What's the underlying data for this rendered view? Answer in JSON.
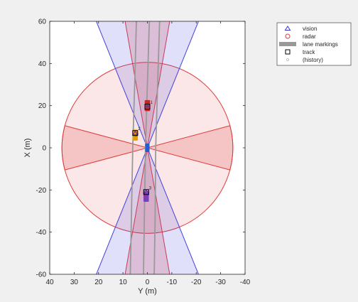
{
  "chart_data": {
    "type": "scatter",
    "title": "",
    "xlabel": "Y (m)",
    "ylabel": "X (m)",
    "xlim": [
      40,
      -40
    ],
    "ylim": [
      -60,
      60
    ],
    "x_ticks": [
      40,
      30,
      20,
      10,
      0,
      -10,
      -20,
      -30,
      -40
    ],
    "y_ticks": [
      -60,
      -40,
      -20,
      0,
      20,
      40,
      60
    ],
    "x_reversed": true,
    "grid": false,
    "legend_position": "top-right",
    "legend": [
      {
        "label": "vision",
        "marker": "triangle",
        "color": "#3333cc"
      },
      {
        "label": "radar",
        "marker": "circle",
        "color": "#e03c3c"
      },
      {
        "label": "lane markings",
        "marker": "thick-line",
        "color": "#999999"
      },
      {
        "label": "track",
        "marker": "square",
        "color": "#000000"
      },
      {
        "label": "(history)",
        "marker": "dot",
        "color": "#b0b0b0"
      }
    ],
    "coverage_areas": [
      {
        "sensor": "radar",
        "shape": "circle",
        "range": 35,
        "color": "#e03c3c",
        "fill_alpha": 0.12
      },
      {
        "sensor": "radar",
        "shape": "wedge",
        "direction": "forward",
        "range": 60,
        "half_angle_deg": 10,
        "color": "#e03c3c",
        "fill_alpha": 0.2
      },
      {
        "sensor": "radar",
        "shape": "wedge",
        "direction": "rear",
        "range": 60,
        "half_angle_deg": 10,
        "color": "#e03c3c",
        "fill_alpha": 0.2
      },
      {
        "sensor": "radar",
        "shape": "wedge",
        "direction": "left",
        "range": 35,
        "half_angle_deg": 15,
        "color": "#e03c3c",
        "fill_alpha": 0.2
      },
      {
        "sensor": "radar",
        "shape": "wedge",
        "direction": "right",
        "range": 35,
        "half_angle_deg": 15,
        "color": "#e03c3c",
        "fill_alpha": 0.2
      },
      {
        "sensor": "vision",
        "shape": "wedge",
        "direction": "forward",
        "range": 60,
        "half_angle_deg": 22,
        "color": "#4040dd",
        "fill_alpha": 0.16
      },
      {
        "sensor": "vision",
        "shape": "wedge",
        "direction": "rear",
        "range": 60,
        "half_angle_deg": 22,
        "color": "#4040dd",
        "fill_alpha": 0.16
      }
    ],
    "lane_markings": [
      {
        "name": "left",
        "color": "#999999",
        "points": [
          [
            7,
            -60
          ],
          [
            6.5,
            -30
          ],
          [
            6,
            0
          ],
          [
            5.2,
            30
          ],
          [
            4.5,
            60
          ]
        ]
      },
      {
        "name": "center",
        "color": "#999999",
        "points": [
          [
            1.6,
            -60
          ],
          [
            1.2,
            -30
          ],
          [
            0.8,
            0
          ],
          [
            0,
            30
          ],
          [
            -0.8,
            60
          ]
        ]
      },
      {
        "name": "right",
        "color": "#999999",
        "points": [
          [
            -2.8,
            -60
          ],
          [
            -3.2,
            -30
          ],
          [
            -3.4,
            0
          ],
          [
            -4.2,
            30
          ],
          [
            -5,
            60
          ]
        ]
      }
    ],
    "ego_vehicle": {
      "x": 0,
      "y": 0,
      "color": "#1f5fd6"
    },
    "vehicles": [
      {
        "y": 0,
        "x": 20,
        "color": "#cc2222"
      },
      {
        "y": 5,
        "x": 6,
        "color": "#e0a000"
      },
      {
        "y": 0.5,
        "x": -23,
        "color": "#7a3fbf"
      }
    ],
    "detections": [
      {
        "sensor": "vision",
        "y": 0,
        "x": 19.5
      },
      {
        "sensor": "radar",
        "y": 0,
        "x": 19.5
      },
      {
        "sensor": "vision",
        "y": 5,
        "x": 7
      },
      {
        "sensor": "radar",
        "y": 4.7,
        "x": 6.5
      },
      {
        "sensor": "vision",
        "y": 0.5,
        "x": -21
      },
      {
        "sensor": "radar",
        "y": 0.8,
        "x": -21.5
      }
    ],
    "tracks": [
      {
        "y": 0,
        "x": 19.5,
        "label": "1"
      },
      {
        "y": 5,
        "x": 7,
        "label": "2"
      },
      {
        "y": 0.5,
        "x": -21,
        "label": "3"
      }
    ]
  }
}
